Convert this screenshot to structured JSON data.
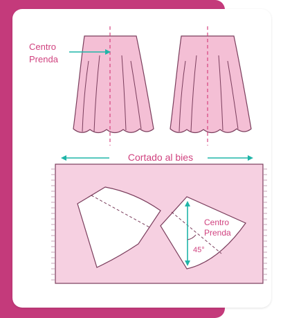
{
  "labels": {
    "center_garment_top_line1": "Centro",
    "center_garment_top_line2": "Prenda",
    "bias_cut": "Cortado al bies",
    "center_garment_pattern_line1": "Centro",
    "center_garment_pattern_line2": "Prenda",
    "angle": "45°"
  },
  "colors": {
    "accent_magenta": "#c43a7b",
    "skirt_fill": "#f4bfd5",
    "fabric_fill": "#f6d0e1",
    "outline": "#7a3d5c",
    "dashed_line": "#d6427f",
    "arrow_teal": "#1fb5a8",
    "text_magenta": "#d0427f"
  }
}
